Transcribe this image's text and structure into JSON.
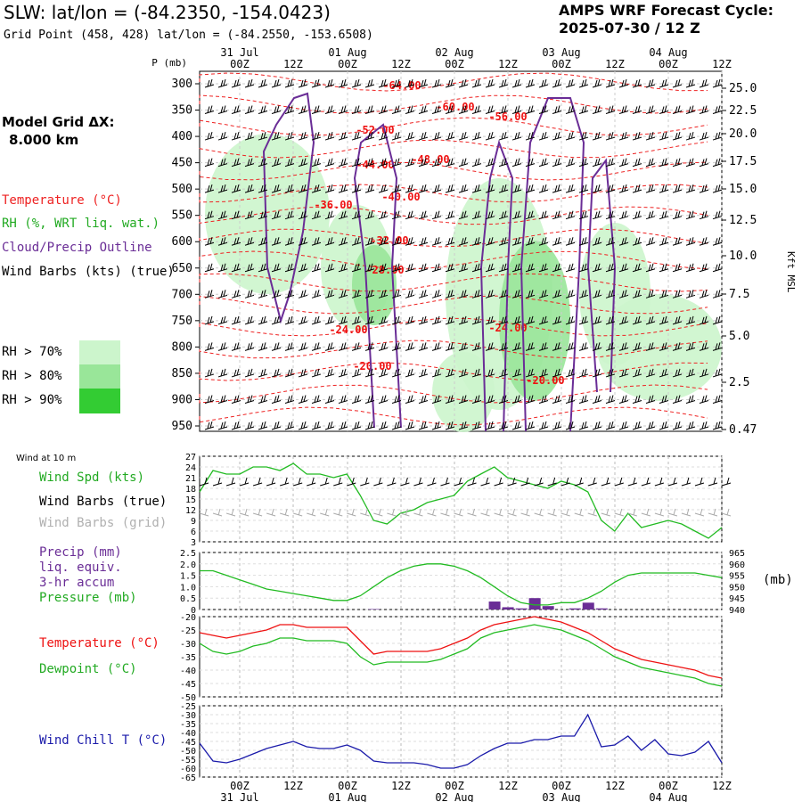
{
  "header": {
    "title": "SLW:  lat/lon = (-84.2350, -154.0423)",
    "subtitle": "Grid Point (458, 428) lat/lon = (-84.2550, -153.6508)",
    "cycle_line1": "AMPS WRF Forecast Cycle:",
    "cycle_line2": "2025-07-30 / 12  Z"
  },
  "left_panel": {
    "model_grid_label": "Model Grid ΔX:",
    "model_grid_value": "8.000 km",
    "legend_temperature": "Temperature (°C)",
    "legend_rh": "RH (%, WRT liq. wat.)",
    "legend_cloud": "Cloud/Precip Outline",
    "legend_wind": "Wind Barbs (kts) (true)",
    "rh70": "RH > 70%",
    "rh80": "RH > 80%",
    "rh90": "RH > 90%",
    "colors": {
      "rh70": "#ccf5cc",
      "rh80": "#99e699",
      "rh90": "#33cc33",
      "temp": "#ee2222",
      "cloud": "#6a2d96"
    }
  },
  "time_axis": {
    "top_dates": [
      "31 Jul",
      "01 Aug",
      "02 Aug",
      "03 Aug",
      "04 Aug"
    ],
    "hour_ticks": [
      "00Z",
      "12Z",
      "00Z",
      "12Z",
      "00Z",
      "12Z",
      "00Z",
      "12Z",
      "00Z",
      "12Z"
    ],
    "p_unit": "P (mb)"
  },
  "chart_data": [
    {
      "type": "heatmap",
      "name": "time-height cross section",
      "y_pressure_ticks": [
        300,
        350,
        400,
        450,
        500,
        550,
        600,
        650,
        700,
        750,
        800,
        850,
        900,
        950
      ],
      "y_height_ticks": [
        "25.0",
        "22.5",
        "20.0",
        "17.5",
        "15.0",
        "12.5",
        "10.0",
        "7.5",
        "5.0",
        "2.5",
        "0.47"
      ],
      "y_height_label": "Kft MSL",
      "temperature_contour_labels": [
        "-64.00",
        "-60.00",
        "-56.00",
        "-52.00",
        "-48.00",
        "-44.00",
        "-40.00",
        "-36.00",
        "-32.00",
        "-28.00",
        "-24.00",
        "-24.00",
        "-20.00",
        "-20.00"
      ]
    },
    {
      "type": "line",
      "name": "wind at 10 m",
      "panel_label": "Wind at 10 m",
      "series_label": "Wind Spd (kts)",
      "barbs_true_label": "Wind Barbs (true)",
      "barbs_grid_label": "Wind Barbs (grid)",
      "y_ticks": [
        3,
        6,
        9,
        12,
        15,
        18,
        21,
        24,
        27
      ],
      "ylim": [
        3,
        27
      ],
      "values": [
        17,
        23,
        22,
        22,
        24,
        24,
        23,
        25,
        22,
        22,
        21,
        22,
        16,
        9,
        8,
        11,
        12,
        14,
        15,
        16,
        20,
        22,
        24,
        21,
        20,
        19,
        18,
        20,
        19,
        17,
        9,
        6,
        11,
        7,
        8,
        9,
        8,
        6,
        4,
        7
      ]
    },
    {
      "type": "bar",
      "name": "precip and pressure",
      "precip_label": [
        "Precip (mm)",
        "liq. equiv.",
        "3-hr accum"
      ],
      "pressure_label": "Pressure (mb)",
      "unit_right": "(mb)",
      "y_left_ticks": [
        "0",
        "0.5",
        "1.0",
        "1.5",
        "2.0",
        "2.5"
      ],
      "ylim_left": [
        0,
        2.5
      ],
      "y_right_ticks": [
        "940",
        "945",
        "950",
        "955",
        "960",
        "965"
      ],
      "ylim_right": [
        940,
        965
      ],
      "precip_values": [
        0,
        0,
        0,
        0,
        0,
        0,
        0,
        0,
        0,
        0,
        0,
        0,
        0,
        0.02,
        0,
        0,
        0,
        0,
        0,
        0,
        0,
        0,
        0.35,
        0.1,
        0.05,
        0.5,
        0.15,
        0,
        0.05,
        0.3,
        0.05,
        0,
        0,
        0,
        0,
        0,
        0,
        0,
        0,
        0
      ],
      "pressure_values": [
        957,
        957,
        955,
        953,
        951,
        949,
        948,
        947,
        946,
        945,
        944,
        944,
        946,
        950,
        954,
        957,
        959,
        960,
        960,
        959,
        957,
        954,
        950,
        946,
        943,
        942,
        942,
        943,
        943,
        945,
        948,
        952,
        955,
        956,
        956,
        956,
        956,
        956,
        955,
        954
      ]
    },
    {
      "type": "line",
      "name": "temperature and dewpoint",
      "series": [
        {
          "name": "Temperature (°C)",
          "color": "#ee1111",
          "values": [
            -26,
            -27,
            -28,
            -27,
            -26,
            -25,
            -23,
            -23,
            -24,
            -24,
            -24,
            -24,
            -29,
            -34,
            -33,
            -33,
            -33,
            -33,
            -32,
            -30,
            -28,
            -25,
            -23,
            -22,
            -21,
            -20,
            -21,
            -22,
            -24,
            -26,
            -29,
            -32,
            -34,
            -36,
            -37,
            -38,
            -39,
            -40,
            -42,
            -43
          ]
        },
        {
          "name": "Dewpoint (°C)",
          "color": "#22bb22",
          "values": [
            -30,
            -33,
            -34,
            -33,
            -31,
            -30,
            -28,
            -28,
            -29,
            -29,
            -29,
            -30,
            -35,
            -38,
            -37,
            -37,
            -37,
            -37,
            -36,
            -34,
            -32,
            -28,
            -26,
            -25,
            -24,
            -23,
            -24,
            -25,
            -27,
            -29,
            -32,
            -35,
            -37,
            -39,
            -40,
            -41,
            -42,
            -43,
            -45,
            -46
          ]
        }
      ],
      "y_ticks": [
        -50,
        -45,
        -40,
        -35,
        -30,
        -25,
        -20
      ],
      "ylim": [
        -50,
        -20
      ]
    },
    {
      "type": "line",
      "name": "wind chill",
      "series_label": "Wind Chill T (°C)",
      "color": "#1a1aaa",
      "y_ticks": [
        -65,
        -60,
        -55,
        -50,
        -45,
        -40,
        -35,
        -30,
        -25
      ],
      "ylim": [
        -65,
        -25
      ],
      "values": [
        -46,
        -56,
        -57,
        -55,
        -52,
        -49,
        -47,
        -45,
        -48,
        -49,
        -49,
        -47,
        -50,
        -56,
        -57,
        -57,
        -57,
        -58,
        -60,
        -60,
        -58,
        -53,
        -49,
        -46,
        -46,
        -44,
        -44,
        -42,
        -42,
        -30,
        -48,
        -47,
        -42,
        -50,
        -44,
        -52,
        -53,
        -51,
        -45,
        -57
      ]
    }
  ]
}
